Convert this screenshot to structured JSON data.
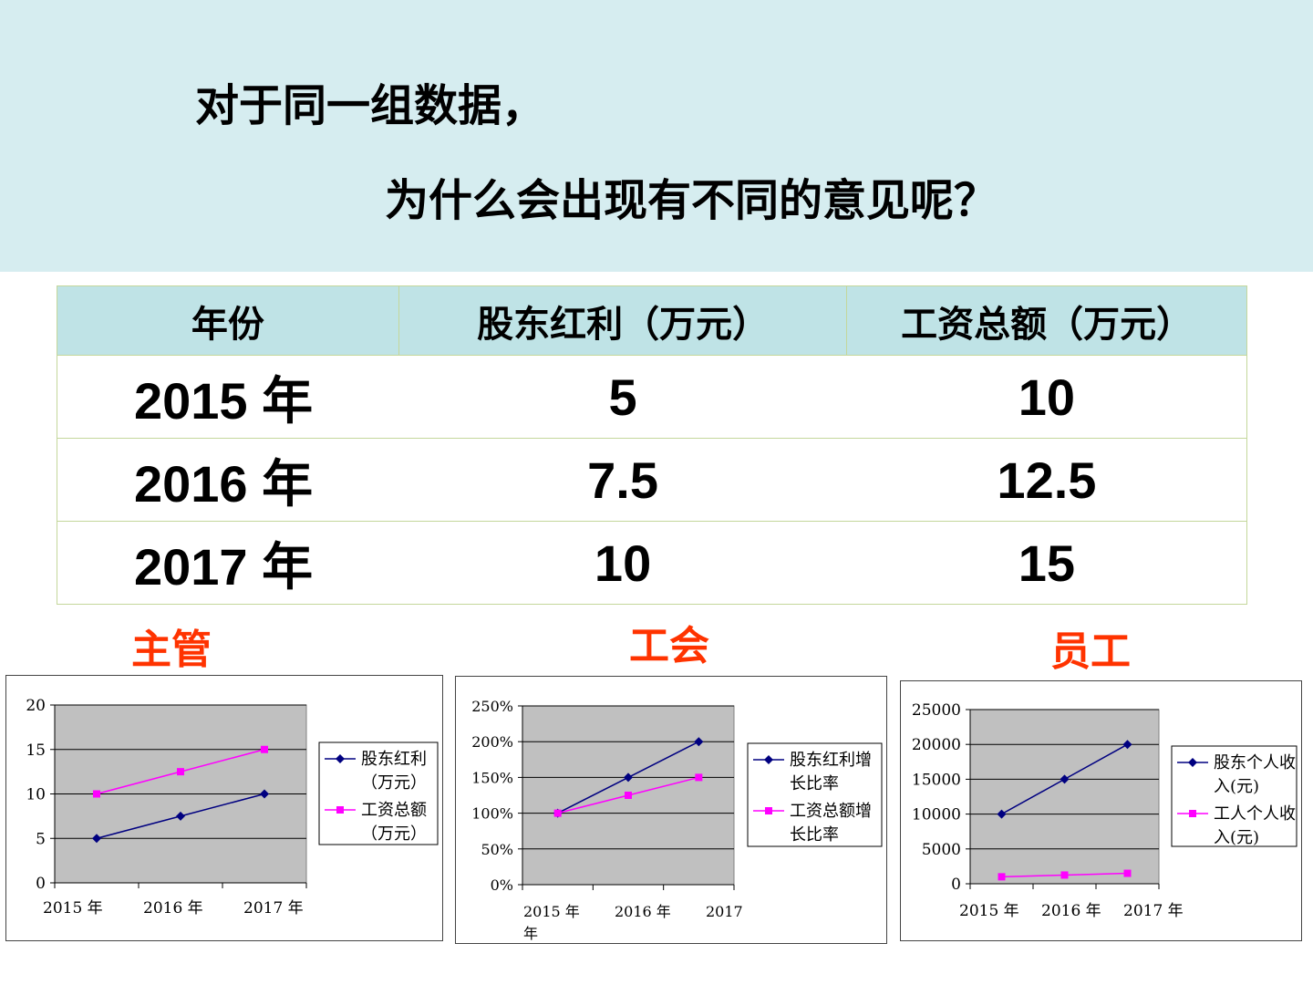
{
  "question": {
    "line1": "对于同一组数据，",
    "line2": "为什么会出现有不同的意见呢？"
  },
  "table": {
    "headers": [
      "年份",
      "股东红利（万元）",
      "工资总额（万元）"
    ],
    "rows": [
      [
        "2015 年",
        "5",
        "10"
      ],
      [
        "2016 年",
        "7.5",
        "12.5"
      ],
      [
        "2017 年",
        "10",
        "15"
      ]
    ]
  },
  "roles": {
    "manager": "主管",
    "union": "工会",
    "employee": "员工"
  },
  "colors": {
    "series1": "#000080",
    "series2": "#ff00ff",
    "plot_bg": "#c0c0c0",
    "role": "#ff3300"
  },
  "chart_data": [
    {
      "type": "line",
      "categories": [
        "2015 年",
        "2016 年",
        "2017 年"
      ],
      "ylim": [
        0,
        20
      ],
      "yticks": [
        "0",
        "5",
        "10",
        "15",
        "20"
      ],
      "legend_position": "right",
      "series": [
        {
          "name": "股东红利（万元）",
          "legend_lines": [
            "股东红利",
            "（万元）"
          ],
          "values": [
            5,
            7.5,
            10
          ],
          "marker": "diamond"
        },
        {
          "name": "工资总额（万元）",
          "legend_lines": [
            "工资总额",
            "（万元）"
          ],
          "values": [
            10,
            12.5,
            15
          ],
          "marker": "square"
        }
      ]
    },
    {
      "type": "line",
      "categories": [
        "2015 年",
        "2016 年",
        "2017 年"
      ],
      "ylim": [
        0,
        2.5
      ],
      "yticks": [
        "0%",
        "50%",
        "100%",
        "150%",
        "200%",
        "250%"
      ],
      "legend_position": "right",
      "series": [
        {
          "name": "股东红利增长比率",
          "legend_lines": [
            "股东红利增",
            "长比率"
          ],
          "values": [
            1.0,
            1.5,
            2.0
          ],
          "marker": "diamond"
        },
        {
          "name": "工资总额增长比率",
          "legend_lines": [
            "工资总额增",
            "长比率"
          ],
          "values": [
            1.0,
            1.25,
            1.5
          ],
          "marker": "square"
        }
      ]
    },
    {
      "type": "line",
      "categories": [
        "2015 年",
        "2016 年",
        "2017 年"
      ],
      "ylim": [
        0,
        25000
      ],
      "yticks": [
        "0",
        "5000",
        "10000",
        "15000",
        "20000",
        "25000"
      ],
      "legend_position": "right",
      "series": [
        {
          "name": "股东个人收入(元)",
          "legend_lines": [
            "股东个人收",
            "入(元)"
          ],
          "values": [
            10000,
            15000,
            20000
          ],
          "marker": "diamond"
        },
        {
          "name": "工人个人收入(元)",
          "legend_lines": [
            "工人个人收",
            "入(元)"
          ],
          "values": [
            1000,
            1250,
            1500
          ],
          "marker": "square"
        }
      ]
    }
  ]
}
